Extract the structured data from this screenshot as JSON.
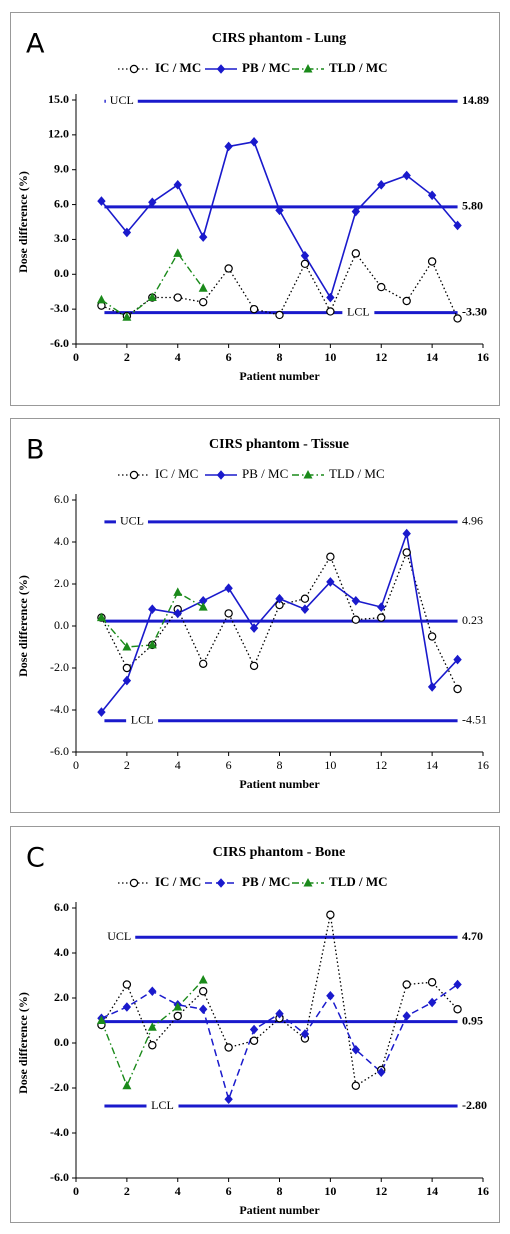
{
  "chart_data": [
    {
      "type": "line",
      "panel_label": "A",
      "title": "CIRS phantom - Lung",
      "xlabel": "Patient number",
      "ylabel": "Dose difference (%)",
      "bold_text": true,
      "x": [
        1,
        2,
        3,
        4,
        5,
        6,
        7,
        8,
        9,
        10,
        11,
        12,
        13,
        14,
        15
      ],
      "xlim": [
        0,
        16
      ],
      "xticks": [
        0,
        2,
        4,
        6,
        8,
        10,
        12,
        14,
        16
      ],
      "ylim": [
        -6,
        15
      ],
      "yticks": [
        {
          "value": -6,
          "label": "-6.0"
        },
        {
          "value": -3,
          "label": "-3.0"
        },
        {
          "value": 0,
          "label": "0.0"
        },
        {
          "value": 3,
          "label": "3.0"
        },
        {
          "value": 6,
          "label": "6.0"
        },
        {
          "value": 9,
          "label": "9.0"
        },
        {
          "value": 12,
          "label": "12.0"
        },
        {
          "value": 15,
          "label": "15.0"
        }
      ],
      "series": [
        {
          "name": "IC / MC",
          "color": "#000000",
          "marker": "circle-open",
          "line_style": "dotted",
          "values": [
            -2.7,
            -3.6,
            -2.0,
            -2.0,
            -2.4,
            0.5,
            -3.0,
            -3.5,
            0.9,
            -3.2,
            1.8,
            -1.1,
            -2.3,
            1.1,
            -3.8
          ]
        },
        {
          "name": "PB / MC",
          "color": "#1a1acc",
          "marker": "diamond",
          "line_style": "solid",
          "values": [
            6.3,
            3.6,
            6.2,
            7.7,
            3.2,
            11.0,
            11.4,
            5.5,
            1.6,
            -2.0,
            5.4,
            7.7,
            8.5,
            6.8,
            4.2
          ]
        },
        {
          "name": "TLD / MC",
          "color": "#1a8a1a",
          "marker": "triangle",
          "line_style": "dashdot",
          "values": [
            -2.2,
            -3.7,
            -2.0,
            1.8,
            -1.2,
            null,
            null,
            null,
            null,
            null,
            null,
            null,
            null,
            null,
            null
          ]
        }
      ],
      "reference_color": "#1a1acc",
      "reference_lines": [
        {
          "name": "UCL",
          "value": 14.89,
          "label": "14.89"
        },
        {
          "value": 5.8,
          "label": "5.80"
        },
        {
          "name": "LCL",
          "value": -3.3,
          "label": "-3.30"
        }
      ]
    },
    {
      "type": "line",
      "panel_label": "B",
      "title": "CIRS phantom - Tissue",
      "xlabel": "Patient number",
      "ylabel": "Dose difference (%)",
      "bold_text": false,
      "x": [
        1,
        2,
        3,
        4,
        5,
        6,
        7,
        8,
        9,
        10,
        11,
        12,
        13,
        14,
        15
      ],
      "xlim": [
        0,
        16
      ],
      "xticks": [
        0,
        2,
        4,
        6,
        8,
        10,
        12,
        14,
        16
      ],
      "ylim": [
        -6,
        6
      ],
      "yticks": [
        {
          "value": -6,
          "label": "-6.0"
        },
        {
          "value": -4,
          "label": "-4.0"
        },
        {
          "value": -2,
          "label": "-2.0"
        },
        {
          "value": 0,
          "label": "0.0"
        },
        {
          "value": 2,
          "label": "2.0"
        },
        {
          "value": 4,
          "label": "4.0"
        },
        {
          "value": 6,
          "label": "6.0"
        }
      ],
      "series": [
        {
          "name": "IC / MC",
          "color": "#000000",
          "marker": "circle-open",
          "line_style": "dotted",
          "values": [
            0.4,
            -2.0,
            -0.9,
            0.8,
            -1.8,
            0.6,
            -1.9,
            1.0,
            1.3,
            3.3,
            0.3,
            0.4,
            3.5,
            -0.5,
            -3.0
          ]
        },
        {
          "name": "PB / MC",
          "color": "#1a1acc",
          "marker": "diamond",
          "line_style": "solid",
          "values": [
            -4.1,
            -2.6,
            0.8,
            0.6,
            1.2,
            1.8,
            -0.1,
            1.3,
            0.8,
            2.1,
            1.2,
            0.9,
            4.4,
            -2.9,
            -1.6
          ]
        },
        {
          "name": "TLD / MC",
          "color": "#1a8a1a",
          "marker": "triangle",
          "line_style": "dashdot",
          "values": [
            0.4,
            -1.0,
            -0.9,
            1.6,
            0.9,
            null,
            null,
            null,
            null,
            null,
            null,
            null,
            null,
            null,
            null
          ]
        }
      ],
      "reference_color": "#1a1acc",
      "reference_lines": [
        {
          "name": "UCL",
          "value": 4.96,
          "label": "4.96"
        },
        {
          "value": 0.23,
          "label": "0.23"
        },
        {
          "name": "LCL",
          "value": -4.51,
          "label": "-4.51"
        }
      ]
    },
    {
      "type": "line",
      "panel_label": "C",
      "title": "CIRS phantom - Bone",
      "xlabel": "Patient number",
      "ylabel": "Dose difference (%)",
      "bold_text": true,
      "x": [
        1,
        2,
        3,
        4,
        5,
        6,
        7,
        8,
        9,
        10,
        11,
        12,
        13,
        14,
        15
      ],
      "xlim": [
        0,
        16
      ],
      "xticks": [
        0,
        2,
        4,
        6,
        8,
        10,
        12,
        14,
        16
      ],
      "ylim": [
        -6,
        6
      ],
      "yticks": [
        {
          "value": -6,
          "label": "-6.0"
        },
        {
          "value": -4,
          "label": "-4.0"
        },
        {
          "value": -2,
          "label": "-2.0"
        },
        {
          "value": 0,
          "label": "0.0"
        },
        {
          "value": 2,
          "label": "2.0"
        },
        {
          "value": 4,
          "label": "4.0"
        },
        {
          "value": 6,
          "label": "6.0"
        }
      ],
      "series": [
        {
          "name": "IC / MC",
          "color": "#000000",
          "marker": "circle-open",
          "line_style": "dotted",
          "values": [
            0.8,
            2.6,
            -0.1,
            1.2,
            2.3,
            -0.2,
            0.1,
            1.1,
            0.2,
            5.7,
            -1.9,
            -1.2,
            2.6,
            2.7,
            1.5
          ]
        },
        {
          "name": "PB / MC",
          "color": "#1a1acc",
          "marker": "diamond",
          "line_style": "dashed",
          "values": [
            1.1,
            1.6,
            2.3,
            1.7,
            1.5,
            -2.5,
            0.6,
            1.3,
            0.4,
            2.1,
            -0.3,
            -1.3,
            1.2,
            1.8,
            2.6
          ]
        },
        {
          "name": "TLD / MC",
          "color": "#1a8a1a",
          "marker": "triangle",
          "line_style": "dashdot",
          "values": [
            1.0,
            -1.9,
            0.7,
            1.6,
            2.8,
            null,
            null,
            null,
            null,
            null,
            null,
            null,
            null,
            null,
            null
          ]
        }
      ],
      "reference_color": "#1a1acc",
      "reference_lines": [
        {
          "name": "UCL",
          "value": 4.7,
          "label": "4.70"
        },
        {
          "value": 0.95,
          "label": "0.95"
        },
        {
          "name": "LCL",
          "value": -2.8,
          "label": "-2.80"
        }
      ]
    }
  ]
}
